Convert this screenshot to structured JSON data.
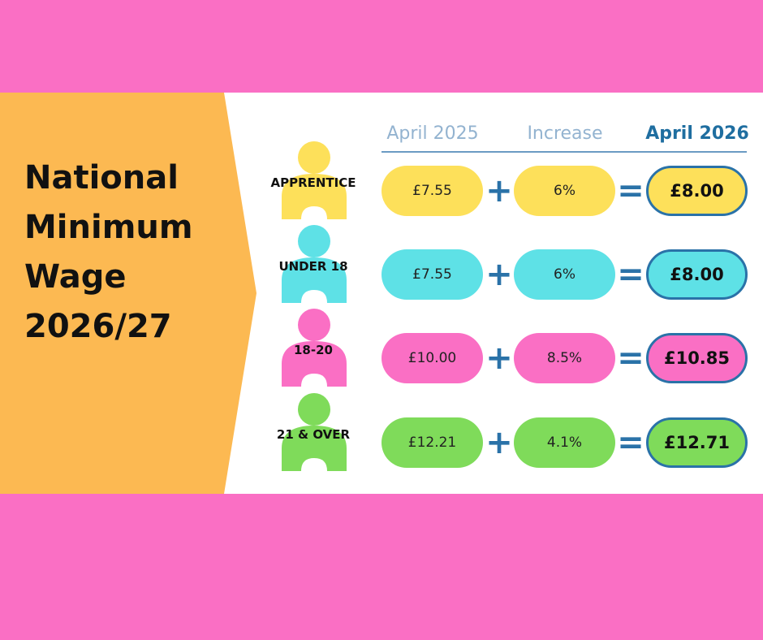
{
  "title": {
    "line1": "National",
    "line2": "Minimum",
    "line3": "Wage",
    "line4": "2026/27"
  },
  "headers": {
    "col1": "April 2025",
    "col2": "Increase",
    "col3": "April 2026"
  },
  "operators": {
    "plus": "+",
    "equals": "="
  },
  "colors": {
    "background": "#fa6fc4",
    "arrow": "#fcb952",
    "accent": "#2a72a8",
    "yellow": "#fde05a",
    "cyan": "#5ee1e6",
    "pink": "#fa6fc4",
    "green": "#7fdb5a"
  },
  "rows": [
    {
      "label": "APPRENTICE",
      "april_2025": "£7.55",
      "increase": "6%",
      "april_2026": "£8.00",
      "color": "#fde05a"
    },
    {
      "label": "UNDER 18",
      "april_2025": "£7.55",
      "increase": "6%",
      "april_2026": "£8.00",
      "color": "#5ee1e6"
    },
    {
      "label": "18-20",
      "april_2025": "£10.00",
      "increase": "8.5%",
      "april_2026": "£10.85",
      "color": "#fa6fc4"
    },
    {
      "label": "21 & OVER",
      "april_2025": "£12.21",
      "increase": "4.1%",
      "april_2026": "£12.71",
      "color": "#7fdb5a"
    }
  ]
}
